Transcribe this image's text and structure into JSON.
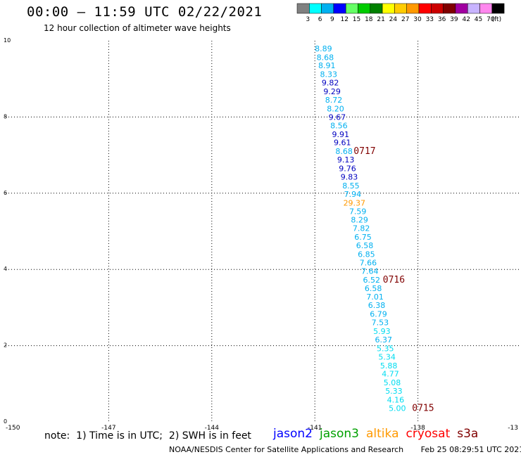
{
  "header": {
    "title": "00:00 – 11:59 UTC 02/22/2021",
    "subtitle": "12 hour collection of altimeter wave heights"
  },
  "scale": {
    "unit_label": "(ft)",
    "items": [
      {
        "label": "3",
        "color": "#808080"
      },
      {
        "label": "6",
        "color": "#00ffff"
      },
      {
        "label": "9",
        "color": "#00b0f0"
      },
      {
        "label": "12",
        "color": "#0000ff"
      },
      {
        "label": "15",
        "color": "#66ff66"
      },
      {
        "label": "18",
        "color": "#00cc00"
      },
      {
        "label": "21",
        "color": "#008000"
      },
      {
        "label": "24",
        "color": "#ffff00"
      },
      {
        "label": "27",
        "color": "#ffcc00"
      },
      {
        "label": "30",
        "color": "#ff9900"
      },
      {
        "label": "33",
        "color": "#ff0000"
      },
      {
        "label": "36",
        "color": "#cc0000"
      },
      {
        "label": "39",
        "color": "#800000"
      },
      {
        "label": "42",
        "color": "#a000a0"
      },
      {
        "label": "45",
        "color": "#c8b4ff"
      },
      {
        "label": "70",
        "color": "#ff88ee"
      },
      {
        "label": "",
        "color": "#000000"
      }
    ]
  },
  "map": {
    "lon_range": [
      -150,
      -135
    ],
    "lat_range": [
      0,
      10
    ],
    "x_ticks": [
      "-150",
      "-147",
      "-144",
      "-141",
      "-138",
      "-13"
    ],
    "y_ticks": [
      "0",
      "2",
      "4",
      "6",
      "8",
      "10"
    ]
  },
  "track": {
    "readings": [
      {
        "lon": -140.75,
        "lat": 9.8,
        "value": "8.89",
        "color": "#00b0f0"
      },
      {
        "lon": -140.7,
        "lat": 9.57,
        "value": "8.68",
        "color": "#00b0f0"
      },
      {
        "lon": -140.65,
        "lat": 9.35,
        "value": "8.91",
        "color": "#00b0f0"
      },
      {
        "lon": -140.6,
        "lat": 9.12,
        "value": "8.33",
        "color": "#00b0f0"
      },
      {
        "lon": -140.55,
        "lat": 8.9,
        "value": "9.82",
        "color": "#0000c0"
      },
      {
        "lon": -140.5,
        "lat": 8.67,
        "value": "9.29",
        "color": "#0000c0"
      },
      {
        "lon": -140.45,
        "lat": 8.45,
        "value": "8.72",
        "color": "#00b0f0"
      },
      {
        "lon": -140.4,
        "lat": 8.22,
        "value": "8.20",
        "color": "#00b0f0"
      },
      {
        "lon": -140.35,
        "lat": 8.0,
        "value": "9.67",
        "color": "#0000c0"
      },
      {
        "lon": -140.3,
        "lat": 7.78,
        "value": "8.56",
        "color": "#00b0f0"
      },
      {
        "lon": -140.25,
        "lat": 7.55,
        "value": "9.91",
        "color": "#0000c0"
      },
      {
        "lon": -140.2,
        "lat": 7.33,
        "value": "9.61",
        "color": "#0000c0"
      },
      {
        "lon": -140.15,
        "lat": 7.1,
        "value": "8.68",
        "color": "#00b0f0"
      },
      {
        "lon": -140.1,
        "lat": 6.88,
        "value": "9.13",
        "color": "#0000c0"
      },
      {
        "lon": -140.05,
        "lat": 6.65,
        "value": "9.76",
        "color": "#0000c0"
      },
      {
        "lon": -140.0,
        "lat": 6.43,
        "value": "9.83",
        "color": "#0000c0"
      },
      {
        "lon": -139.95,
        "lat": 6.2,
        "value": "8.55",
        "color": "#00b0f0"
      },
      {
        "lon": -139.9,
        "lat": 5.98,
        "value": "7.94",
        "color": "#00b0f0"
      },
      {
        "lon": -139.85,
        "lat": 5.75,
        "value": "29.37",
        "color": "#ff9900"
      },
      {
        "lon": -139.75,
        "lat": 5.53,
        "value": "7.59",
        "color": "#00b0f0"
      },
      {
        "lon": -139.7,
        "lat": 5.3,
        "value": "8.29",
        "color": "#00b0f0"
      },
      {
        "lon": -139.65,
        "lat": 5.08,
        "value": "7.82",
        "color": "#00b0f0"
      },
      {
        "lon": -139.6,
        "lat": 4.85,
        "value": "6.75",
        "color": "#00b0f0"
      },
      {
        "lon": -139.55,
        "lat": 4.63,
        "value": "6.58",
        "color": "#00b0f0"
      },
      {
        "lon": -139.5,
        "lat": 4.4,
        "value": "6.85",
        "color": "#00b0f0"
      },
      {
        "lon": -139.45,
        "lat": 4.18,
        "value": "7.66",
        "color": "#00b0f0"
      },
      {
        "lon": -139.4,
        "lat": 3.96,
        "value": "7.64",
        "color": "#00b0f0"
      },
      {
        "lon": -139.35,
        "lat": 3.73,
        "value": "6.52",
        "color": "#00b0f0"
      },
      {
        "lon": -139.3,
        "lat": 3.51,
        "value": "6.58",
        "color": "#00b0f0"
      },
      {
        "lon": -139.25,
        "lat": 3.28,
        "value": "7.01",
        "color": "#00b0f0"
      },
      {
        "lon": -139.2,
        "lat": 3.06,
        "value": "6.38",
        "color": "#00b0f0"
      },
      {
        "lon": -139.15,
        "lat": 2.83,
        "value": "6.79",
        "color": "#00b0f0"
      },
      {
        "lon": -139.1,
        "lat": 2.61,
        "value": "7.53",
        "color": "#00b0f0"
      },
      {
        "lon": -139.05,
        "lat": 2.38,
        "value": "5.93",
        "color": "#00dcf0"
      },
      {
        "lon": -139.0,
        "lat": 2.16,
        "value": "6.37",
        "color": "#00b0f0"
      },
      {
        "lon": -138.95,
        "lat": 1.93,
        "value": "5.35",
        "color": "#00dcf0"
      },
      {
        "lon": -138.9,
        "lat": 1.71,
        "value": "5.34",
        "color": "#00dcf0"
      },
      {
        "lon": -138.85,
        "lat": 1.48,
        "value": "5.88",
        "color": "#00dcf0"
      },
      {
        "lon": -138.8,
        "lat": 1.26,
        "value": "4.77",
        "color": "#00dcf0"
      },
      {
        "lon": -138.75,
        "lat": 1.03,
        "value": "5.08",
        "color": "#00dcf0"
      },
      {
        "lon": -138.7,
        "lat": 0.81,
        "value": "5.33",
        "color": "#00dcf0"
      },
      {
        "lon": -138.65,
        "lat": 0.58,
        "value": "4.16",
        "color": "#00dcf0"
      },
      {
        "lon": -138.6,
        "lat": 0.36,
        "value": "5.00",
        "color": "#00dcf0"
      }
    ],
    "time_labels": [
      {
        "lon": -139.55,
        "lat": 7.1,
        "text": "0717",
        "color": "#800000"
      },
      {
        "lon": -138.7,
        "lat": 3.73,
        "text": "0716",
        "color": "#800000"
      },
      {
        "lon": -137.85,
        "lat": 0.36,
        "text": "0715",
        "color": "#800000"
      }
    ]
  },
  "footer": {
    "note": "note:  1) Time is in UTC;  2) SWH is in feet",
    "satellites": [
      {
        "name": "jason2",
        "color": "#0000ff"
      },
      {
        "name": "jason3",
        "color": "#00a000"
      },
      {
        "name": "altika",
        "color": "#ff9900"
      },
      {
        "name": "cryosat",
        "color": "#ff0000"
      },
      {
        "name": "s3a",
        "color": "#800000"
      }
    ],
    "credit": "NOAA/NESDIS Center for Satellite Applications and Research       Feb 25 08:29:51 UTC 2021"
  }
}
